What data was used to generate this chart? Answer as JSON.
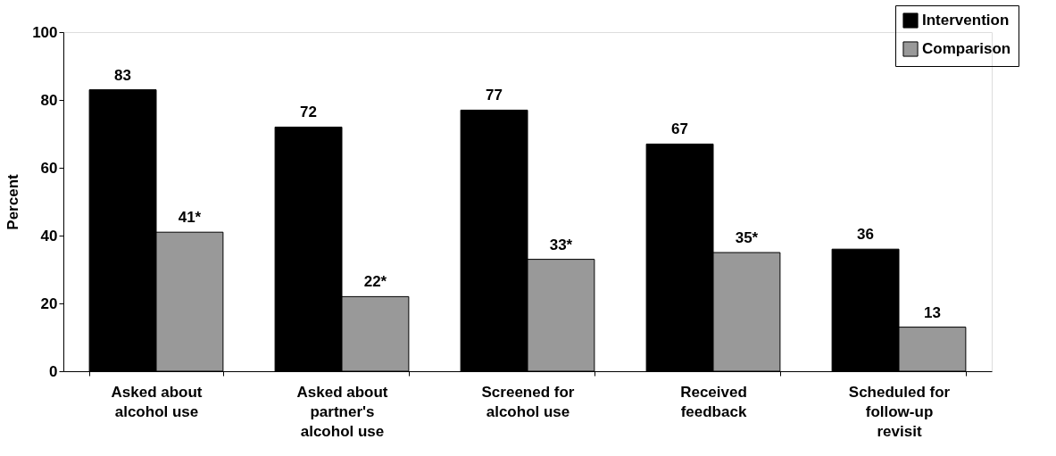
{
  "chart_data": {
    "type": "bar",
    "categories": [
      "Asked about\nalcohol use",
      "Asked about\npartner's\nalcohol use",
      "Screened for\nalcohol use",
      "Received\nfeedback",
      "Scheduled for\nfollow-up\nrevisit"
    ],
    "series": [
      {
        "name": "Intervention",
        "color": "#000000",
        "values": [
          83,
          72,
          77,
          67,
          36
        ],
        "value_labels": [
          "83",
          "72",
          "77",
          "67",
          "36"
        ]
      },
      {
        "name": "Comparison",
        "color": "#999999",
        "values": [
          41,
          22,
          33,
          35,
          13
        ],
        "value_labels": [
          "41*",
          "22*",
          "33*",
          "35*",
          "13"
        ]
      }
    ],
    "ylabel": "Percent",
    "ylim": [
      0,
      100
    ],
    "yticks": [
      0,
      20,
      40,
      60,
      80,
      100
    ],
    "grid": false,
    "legend": "top right"
  }
}
